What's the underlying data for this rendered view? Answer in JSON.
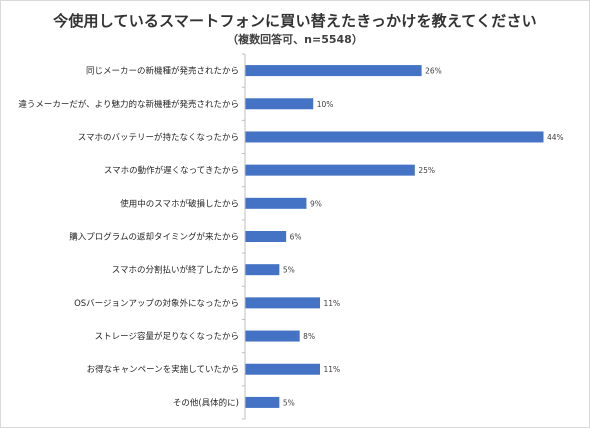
{
  "chart_data": {
    "type": "bar",
    "orientation": "horizontal",
    "title": "今使用しているスマートフォンに買い替えたきっかけを教えてください",
    "subtitle": "（複数回答可、n=5548）",
    "categories": [
      "同じメーカーの新機種が発売されたから",
      "違うメーカーだが、より魅力的な新機種が発売されたから",
      "スマホのバッテリーが持たなくなったから",
      "スマホの動作が遅くなってきたから",
      "使用中のスマホが破損したから",
      "購入プログラムの返却タイミングが来たから",
      "スマホの分割払いが終了したから",
      "OSバージョンアップの対象外になったから",
      "ストレージ容量が足りなくなったから",
      "お得なキャンペーンを実施していたから",
      "その他(具体的に)"
    ],
    "values": [
      26,
      10,
      44,
      25,
      9,
      6,
      5,
      11,
      8,
      11,
      5
    ],
    "value_labels": [
      "26%",
      "10%",
      "44%",
      "25%",
      "9%",
      "6%",
      "5%",
      "11%",
      "8%",
      "11%",
      "5%"
    ],
    "unit": "%",
    "xlim": [
      0,
      45
    ],
    "grid": false,
    "legend": "none",
    "bar_color": "#4472c4",
    "axis_color": "#bfbfbf"
  }
}
